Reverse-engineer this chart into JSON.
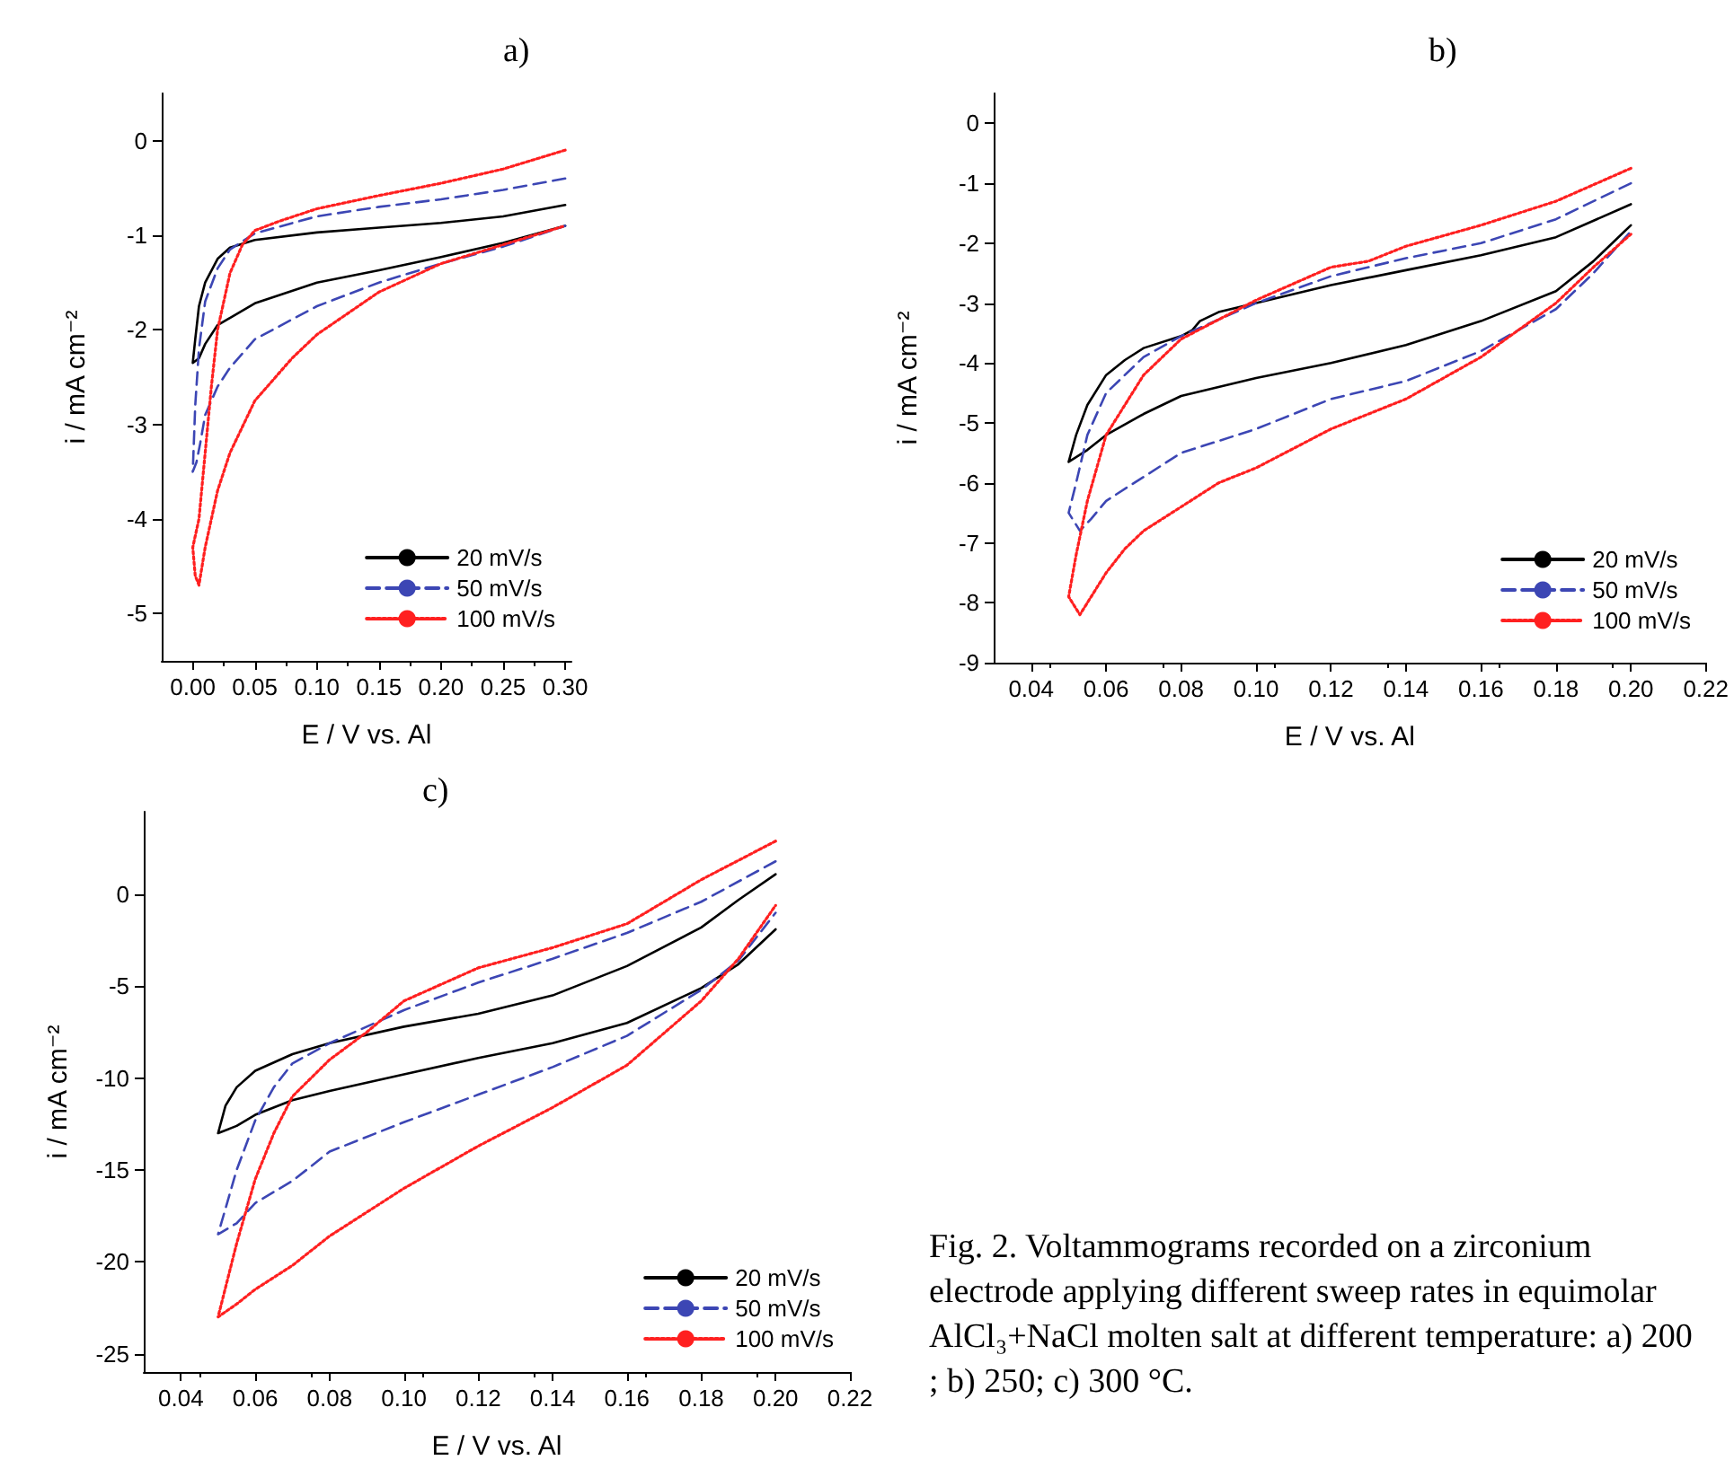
{
  "chart_data": [
    {
      "type": "line",
      "title": "a)",
      "xlabel": "E / V vs. Al",
      "ylabel": "i / mA cm⁻²",
      "xlim": [
        -0.025,
        0.305
      ],
      "ylim": [
        -5.5,
        0.5
      ],
      "xticks": [
        {
          "value": 0,
          "label": "0.00"
        },
        {
          "value": 0.05,
          "label": "0.05"
        },
        {
          "value": 0.1,
          "label": "0.10"
        },
        {
          "value": 0.15,
          "label": "0.15"
        },
        {
          "value": 0.2,
          "label": "0.20"
        },
        {
          "value": 0.25,
          "label": "0.25"
        },
        {
          "value": 0.3,
          "label": "0.30"
        }
      ],
      "yticks": [
        -5,
        -4,
        -3,
        -2,
        -1,
        0
      ],
      "grid": false,
      "legend": "bottom right",
      "marker": "none",
      "series": [
        {
          "name": "20 mV/s",
          "color": "#000000",
          "line_style": "solid",
          "x": [
            0.3,
            0.25,
            0.2,
            0.15,
            0.1,
            0.05,
            0.03,
            0.02,
            0.01,
            0.005,
            0.002,
            0.0,
            0.005,
            0.01,
            0.02,
            0.05,
            0.1,
            0.15,
            0.2,
            0.25,
            0.3
          ],
          "values": [
            -0.68,
            -0.8,
            -0.87,
            -0.92,
            -0.97,
            -1.05,
            -1.13,
            -1.25,
            -1.5,
            -1.75,
            -2.1,
            -2.35,
            -2.3,
            -2.15,
            -1.95,
            -1.72,
            -1.5,
            -1.37,
            -1.23,
            -1.08,
            -0.9
          ]
        },
        {
          "name": "50 mV/s",
          "color": "#3c46b4",
          "line_style": "dashed",
          "x": [
            0.3,
            0.25,
            0.2,
            0.15,
            0.1,
            0.05,
            0.03,
            0.02,
            0.01,
            0.005,
            0.002,
            0.0,
            0.003,
            0.006,
            0.01,
            0.02,
            0.03,
            0.05,
            0.1,
            0.15,
            0.2,
            0.25,
            0.3
          ],
          "values": [
            -0.4,
            -0.52,
            -0.62,
            -0.7,
            -0.8,
            -0.98,
            -1.15,
            -1.35,
            -1.7,
            -2.2,
            -2.8,
            -3.5,
            -3.4,
            -3.2,
            -2.9,
            -2.6,
            -2.4,
            -2.1,
            -1.75,
            -1.5,
            -1.3,
            -1.12,
            -0.9
          ]
        },
        {
          "name": "100 mV/s",
          "color": "#ff2020",
          "line_style": "dotted",
          "x": [
            0.3,
            0.25,
            0.2,
            0.15,
            0.1,
            0.07,
            0.05,
            0.04,
            0.03,
            0.02,
            0.015,
            0.01,
            0.005,
            0.0,
            0.002,
            0.005,
            0.01,
            0.015,
            0.02,
            0.03,
            0.05,
            0.08,
            0.1,
            0.15,
            0.2,
            0.25,
            0.3
          ],
          "values": [
            -0.1,
            -0.3,
            -0.45,
            -0.58,
            -0.72,
            -0.85,
            -0.95,
            -1.1,
            -1.4,
            -2.0,
            -2.6,
            -3.3,
            -4.0,
            -4.3,
            -4.6,
            -4.7,
            -4.3,
            -4.0,
            -3.7,
            -3.3,
            -2.75,
            -2.3,
            -2.05,
            -1.6,
            -1.3,
            -1.1,
            -0.9
          ]
        }
      ]
    },
    {
      "type": "line",
      "title": "b)",
      "xlabel": "E / V vs. Al",
      "ylabel": "i / mA cm⁻²",
      "xlim": [
        0.03,
        0.22
      ],
      "ylim": [
        -9,
        0.5
      ],
      "xticks": [
        {
          "value": 0.04,
          "label": "0.04"
        },
        {
          "value": 0.06,
          "label": "0.06"
        },
        {
          "value": 0.08,
          "label": "0.08"
        },
        {
          "value": 0.1,
          "label": "0.10"
        },
        {
          "value": 0.12,
          "label": "0.12"
        },
        {
          "value": 0.14,
          "label": "0.14"
        },
        {
          "value": 0.16,
          "label": "0.16"
        },
        {
          "value": 0.18,
          "label": "0.18"
        },
        {
          "value": 0.2,
          "label": "0.20"
        },
        {
          "value": 0.22,
          "label": "0.22"
        }
      ],
      "yticks": [
        -9,
        -8,
        -7,
        -6,
        -5,
        -4,
        -3,
        -2,
        -1,
        0
      ],
      "grid": false,
      "legend": "bottom right",
      "marker": "none",
      "series": [
        {
          "name": "20 mV/s",
          "color": "#000000",
          "line_style": "solid",
          "x": [
            0.2,
            0.18,
            0.16,
            0.14,
            0.12,
            0.1,
            0.09,
            0.085,
            0.083,
            0.08,
            0.07,
            0.065,
            0.06,
            0.055,
            0.052,
            0.05,
            0.055,
            0.06,
            0.07,
            0.08,
            0.1,
            0.12,
            0.14,
            0.16,
            0.18,
            0.19,
            0.2
          ],
          "values": [
            -1.35,
            -1.9,
            -2.2,
            -2.45,
            -2.7,
            -3.0,
            -3.15,
            -3.3,
            -3.45,
            -3.55,
            -3.75,
            -3.95,
            -4.2,
            -4.7,
            -5.2,
            -5.65,
            -5.45,
            -5.2,
            -4.85,
            -4.55,
            -4.25,
            -4.0,
            -3.7,
            -3.3,
            -2.8,
            -2.3,
            -1.7
          ]
        },
        {
          "name": "50 mV/s",
          "color": "#3c46b4",
          "line_style": "dashed",
          "x": [
            0.2,
            0.18,
            0.16,
            0.14,
            0.12,
            0.1,
            0.08,
            0.07,
            0.06,
            0.055,
            0.052,
            0.05,
            0.053,
            0.056,
            0.06,
            0.07,
            0.08,
            0.1,
            0.12,
            0.14,
            0.16,
            0.18,
            0.19,
            0.2
          ],
          "values": [
            -1.0,
            -1.6,
            -2.0,
            -2.25,
            -2.55,
            -3.0,
            -3.55,
            -3.9,
            -4.5,
            -5.2,
            -6.0,
            -6.5,
            -6.8,
            -6.6,
            -6.3,
            -5.9,
            -5.5,
            -5.1,
            -4.6,
            -4.3,
            -3.8,
            -3.1,
            -2.5,
            -1.8
          ]
        },
        {
          "name": "100 mV/s",
          "color": "#ff2020",
          "line_style": "dotted",
          "x": [
            0.2,
            0.18,
            0.16,
            0.14,
            0.13,
            0.12,
            0.1,
            0.08,
            0.07,
            0.06,
            0.055,
            0.052,
            0.05,
            0.053,
            0.056,
            0.06,
            0.065,
            0.07,
            0.08,
            0.09,
            0.1,
            0.12,
            0.14,
            0.16,
            0.18,
            0.19,
            0.2
          ],
          "values": [
            -0.75,
            -1.3,
            -1.7,
            -2.05,
            -2.3,
            -2.4,
            -2.95,
            -3.6,
            -4.2,
            -5.2,
            -6.3,
            -7.2,
            -7.9,
            -8.2,
            -7.9,
            -7.5,
            -7.1,
            -6.8,
            -6.4,
            -6.0,
            -5.75,
            -5.1,
            -4.6,
            -3.9,
            -3.0,
            -2.4,
            -1.85
          ]
        }
      ]
    },
    {
      "type": "line",
      "title": "c)",
      "xlabel": "E / V vs. Al",
      "ylabel": "i / mA cm⁻²",
      "xlim": [
        0.03,
        0.22
      ],
      "ylim": [
        -26,
        4.5
      ],
      "xticks": [
        {
          "value": 0.04,
          "label": "0.04"
        },
        {
          "value": 0.06,
          "label": "0.06"
        },
        {
          "value": 0.08,
          "label": "0.08"
        },
        {
          "value": 0.1,
          "label": "0.10"
        },
        {
          "value": 0.12,
          "label": "0.12"
        },
        {
          "value": 0.14,
          "label": "0.14"
        },
        {
          "value": 0.16,
          "label": "0.16"
        },
        {
          "value": 0.18,
          "label": "0.18"
        },
        {
          "value": 0.2,
          "label": "0.20"
        },
        {
          "value": 0.22,
          "label": "0.22"
        }
      ],
      "yticks": [
        -25,
        -20,
        -15,
        -10,
        -5,
        0
      ],
      "grid": false,
      "legend": "bottom right",
      "marker": "none",
      "annotations": [
        "Fig. 2. Voltammograms recorded on a zirconium electrode applying different sweep rates in equimolar AlCl₃+NaCl molten salt at different temperature: a) 200; b) 250; c) 300 °C."
      ],
      "series": [
        {
          "name": "20 mV/s",
          "color": "#000000",
          "line_style": "solid",
          "x": [
            0.2,
            0.19,
            0.18,
            0.16,
            0.14,
            0.12,
            0.1,
            0.08,
            0.07,
            0.06,
            0.055,
            0.052,
            0.05,
            0.055,
            0.06,
            0.07,
            0.08,
            0.1,
            0.12,
            0.14,
            0.16,
            0.18,
            0.19,
            0.2
          ],
          "values": [
            1.1,
            -0.3,
            -1.8,
            -3.9,
            -5.5,
            -6.5,
            -7.2,
            -8.1,
            -8.7,
            -9.6,
            -10.5,
            -11.5,
            -13.0,
            -12.6,
            -12.0,
            -11.2,
            -10.7,
            -9.8,
            -8.9,
            -8.1,
            -7.0,
            -5.1,
            -3.8,
            -1.9
          ]
        },
        {
          "name": "50 mV/s",
          "color": "#3c46b4",
          "line_style": "dashed",
          "x": [
            0.2,
            0.18,
            0.16,
            0.14,
            0.12,
            0.1,
            0.09,
            0.08,
            0.07,
            0.065,
            0.06,
            0.055,
            0.05,
            0.055,
            0.06,
            0.07,
            0.08,
            0.1,
            0.12,
            0.14,
            0.16,
            0.18,
            0.19,
            0.2
          ],
          "values": [
            1.8,
            -0.4,
            -2.1,
            -3.5,
            -4.8,
            -6.3,
            -7.2,
            -8.1,
            -9.2,
            -10.5,
            -12.3,
            -15.0,
            -18.5,
            -17.9,
            -16.8,
            -15.6,
            -14.0,
            -12.4,
            -10.9,
            -9.4,
            -7.7,
            -5.2,
            -3.6,
            -1.0
          ]
        },
        {
          "name": "100 mV/s",
          "color": "#ff2020",
          "line_style": "dotted",
          "x": [
            0.2,
            0.18,
            0.16,
            0.14,
            0.12,
            0.1,
            0.09,
            0.08,
            0.07,
            0.065,
            0.06,
            0.055,
            0.05,
            0.055,
            0.06,
            0.07,
            0.08,
            0.1,
            0.12,
            0.14,
            0.16,
            0.18,
            0.19,
            0.2
          ],
          "values": [
            2.9,
            0.8,
            -1.6,
            -2.9,
            -4.0,
            -5.8,
            -7.5,
            -9.0,
            -11.0,
            -13.0,
            -15.5,
            -19.0,
            -23.0,
            -22.3,
            -21.5,
            -20.2,
            -18.6,
            -16.0,
            -13.7,
            -11.6,
            -9.3,
            -5.8,
            -3.5,
            -0.6
          ]
        }
      ]
    }
  ]
}
